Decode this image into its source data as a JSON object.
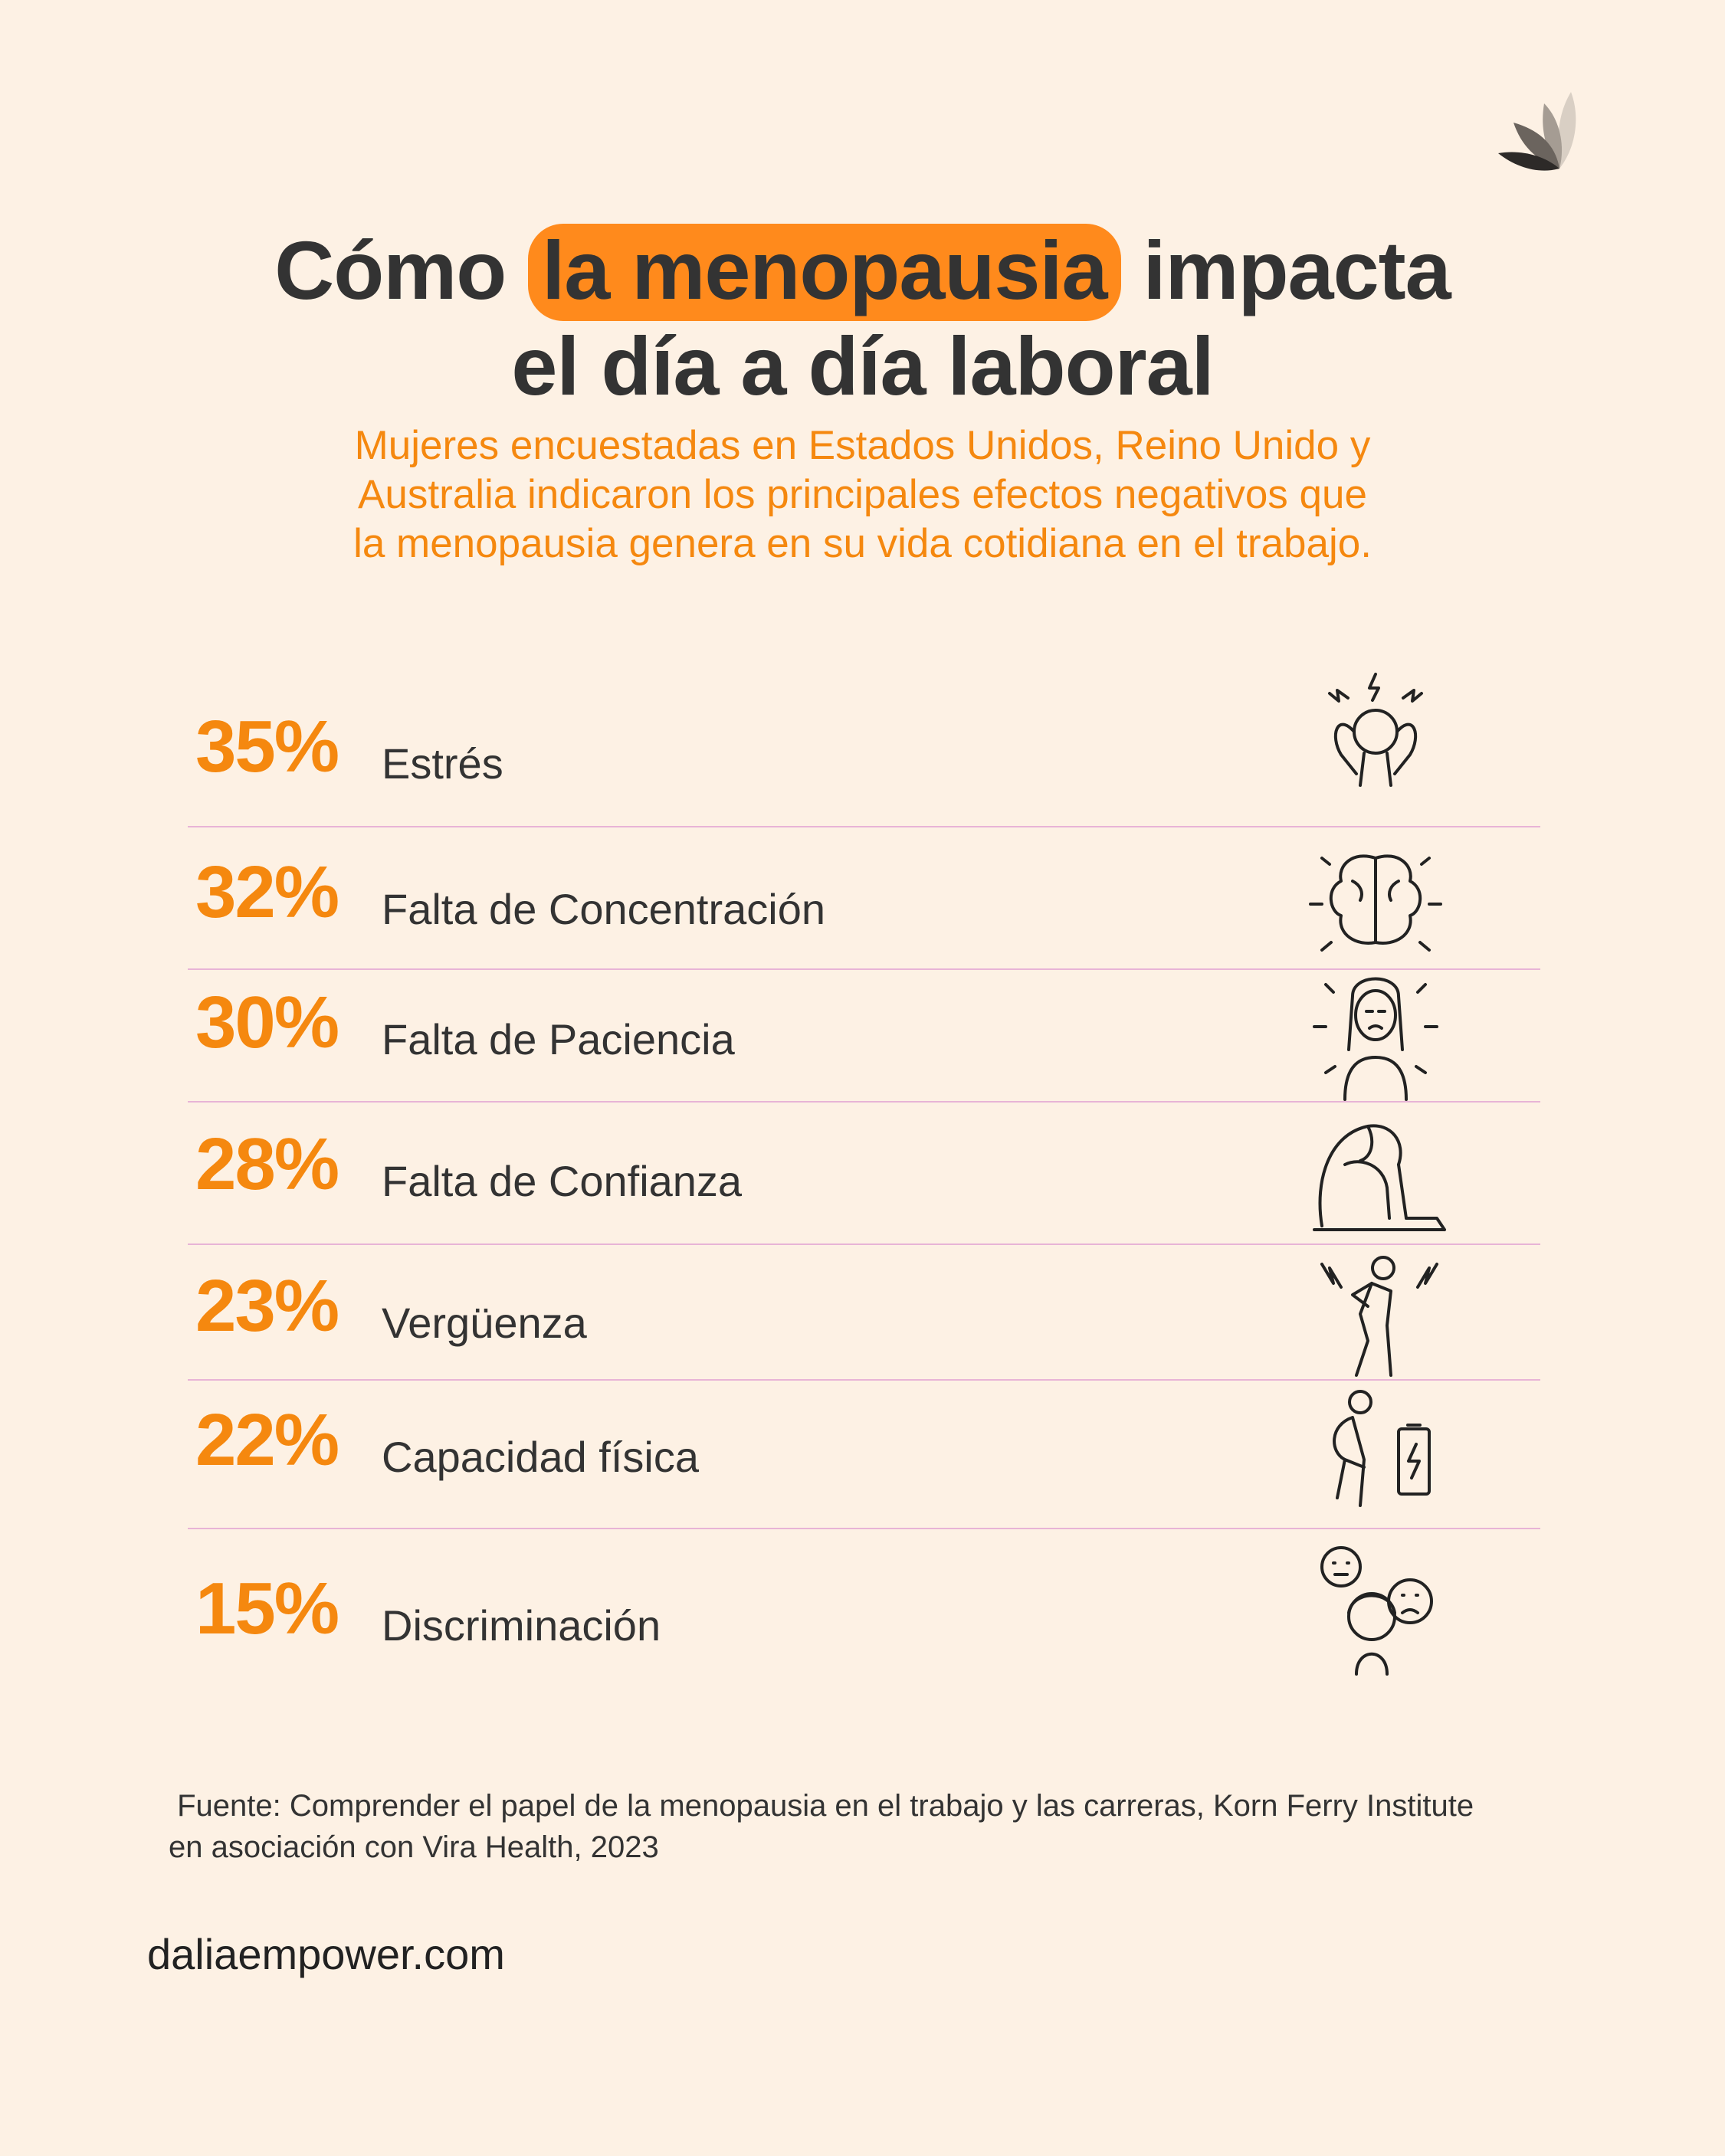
{
  "title": {
    "line1_pre": "Cómo ",
    "line1_highlight": "la menopausia",
    "line1_post": " impacta",
    "line2": "el día a día laboral"
  },
  "subtitle": [
    "Mujeres encuestadas en Estados Unidos, Reino Unido y",
    "Australia indicaron los principales efectos negativos que",
    "la menopausia genera en su vida cotidiana en el trabajo."
  ],
  "stats": [
    {
      "percent": "35%",
      "label": "Estrés",
      "icon": "stressed-person-icon"
    },
    {
      "percent": "32%",
      "label": "Falta de Concentración",
      "icon": "brain-icon"
    },
    {
      "percent": "30%",
      "label": "Falta de Paciencia",
      "icon": "frustrated-woman-icon"
    },
    {
      "percent": "28%",
      "label": "Falta de Confianza",
      "icon": "sitting-hugging-knees-icon"
    },
    {
      "percent": "23%",
      "label": "Vergüenza",
      "icon": "ashamed-person-icon"
    },
    {
      "percent": "22%",
      "label": "Capacidad física",
      "icon": "tired-person-battery-icon"
    },
    {
      "percent": "15%",
      "label": "Discriminación",
      "icon": "excluded-person-icon"
    }
  ],
  "source": {
    "line1": " Fuente: Comprender el papel de la menopausia en el trabajo y las carreras, Korn Ferry Institute",
    "line2": "en asociación con Vira Health, 2023"
  },
  "website": "daliaempower.com",
  "colors": {
    "accent": "#f5880f",
    "highlight": "#ff8a1c",
    "background": "#fdf1e4",
    "divider": "#e8b4d6"
  }
}
